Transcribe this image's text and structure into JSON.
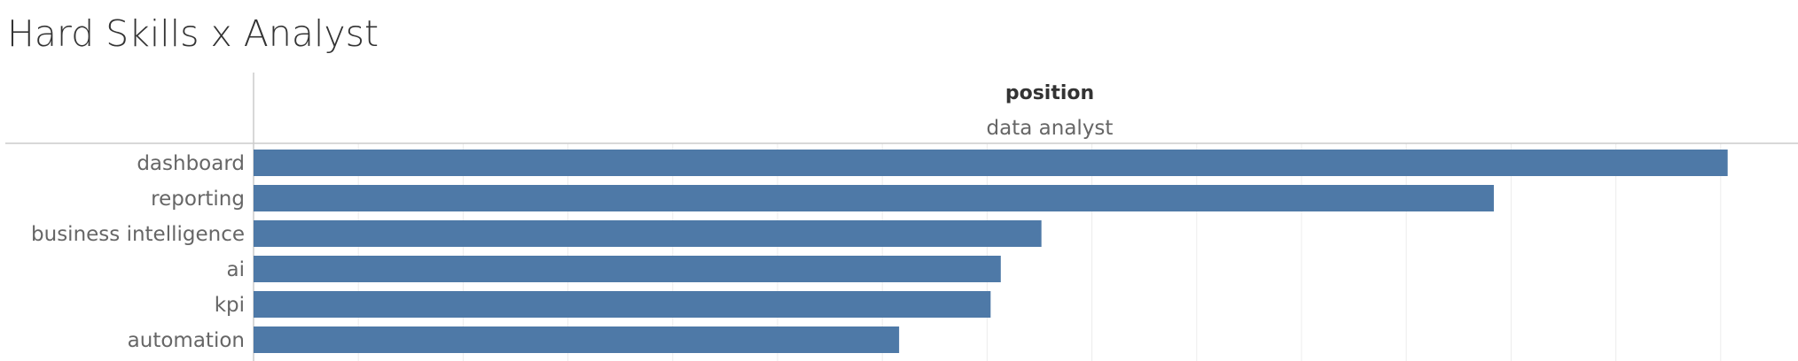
{
  "header": {
    "title": "Hard Skills x Analyst"
  },
  "chart_data": {
    "type": "bar",
    "orientation": "horizontal",
    "column_field": "position",
    "column_value": "data analyst",
    "categories": [
      "dashboard",
      "reporting",
      "business intelligence",
      "ai",
      "kpi",
      "automation"
    ],
    "values": [
      29,
      24.4,
      15.5,
      14.7,
      14.5,
      12.7
    ],
    "xlim": [
      0,
      30
    ],
    "grid": true,
    "legend": "none"
  },
  "colors": {
    "bar": "#4e79a7"
  }
}
